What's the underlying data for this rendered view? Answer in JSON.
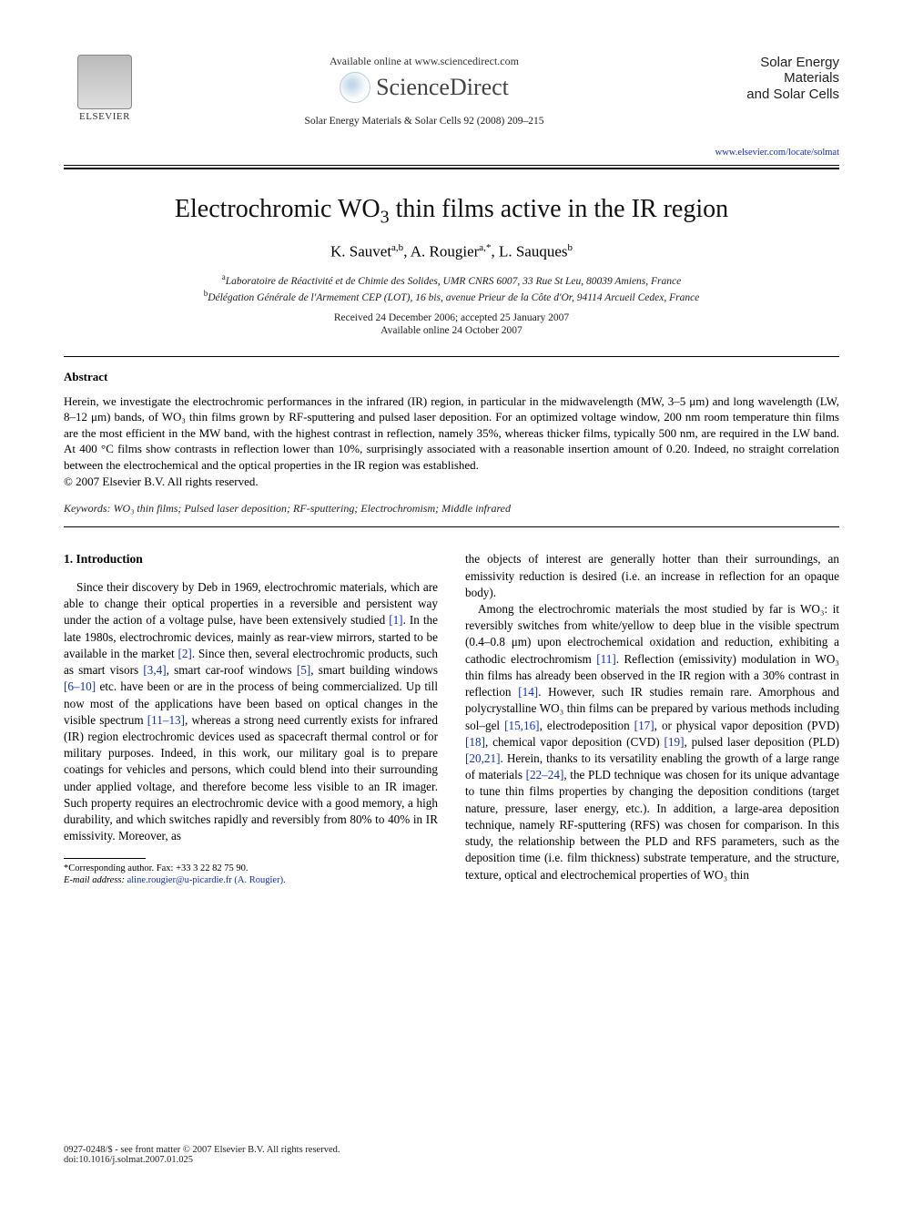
{
  "header": {
    "available_online": "Available online at www.sciencedirect.com",
    "sciencedirect": "ScienceDirect",
    "elsevier_label": "ELSEVIER",
    "journal_ref": "Solar Energy Materials & Solar Cells 92 (2008) 209–215",
    "cover_title_line1": "Solar Energy Materials",
    "cover_title_line2": "and Solar Cells",
    "journal_url": "www.elsevier.com/locate/solmat"
  },
  "article": {
    "title_pre": "Electrochromic WO",
    "title_sub": "3",
    "title_post": " thin films active in the IR region",
    "authors_html": "K. Sauvet",
    "author1_aff": "a,b",
    "author2": ", A. Rougier",
    "author2_aff": "a,",
    "author2_corr": "*",
    "author3": ", L. Sauques",
    "author3_aff": "b",
    "affil_a_sup": "a",
    "affil_a": "Laboratoire de Réactivité et de Chimie des Solides, UMR CNRS 6007, 33 Rue St Leu, 80039 Amiens, France",
    "affil_b_sup": "b",
    "affil_b": "Délégation Générale de l'Armement CEP (LOT), 16 bis, avenue Prieur de la Côte d'Or, 94114 Arcueil Cedex, France",
    "received": "Received 24 December 2006; accepted 25 January 2007",
    "available": "Available online 24 October 2007"
  },
  "abstract": {
    "heading": "Abstract",
    "body": "Herein, we investigate the electrochromic performances in the infrared (IR) region, in particular in the midwavelength (MW, 3–5 μm) and long wavelength (LW, 8–12 μm) bands, of WO₃ thin films grown by RF-sputtering and pulsed laser deposition. For an optimized voltage window, 200 nm room temperature thin films are the most efficient in the MW band, with the highest contrast in reflection, namely 35%, whereas thicker films, typically 500 nm, are required in the LW band. At 400 °C films show contrasts in reflection lower than 10%, surprisingly associated with a reasonable insertion amount of 0.20. Indeed, no straight correlation between the electrochemical and the optical properties in the IR region was established.",
    "copyright": "© 2007 Elsevier B.V. All rights reserved.",
    "keywords_label": "Keywords:",
    "keywords": " WO₃ thin films; Pulsed laser deposition; RF-sputtering; Electrochromism; Middle infrared"
  },
  "body": {
    "section_heading": "1. Introduction",
    "col1_p1a": "Since their discovery by Deb in 1969, electrochromic materials, which are able to change their optical properties in a reversible and persistent way under the action of a voltage pulse, have been extensively studied ",
    "ref1": "[1]",
    "col1_p1b": ". In the late 1980s, electrochromic devices, mainly as rear-view mirrors, started to be available in the market ",
    "ref2": "[2]",
    "col1_p1c": ". Since then, several electrochromic products, such as smart visors ",
    "ref34": "[3,4]",
    "col1_p1d": ", smart car-roof windows ",
    "ref5": "[5]",
    "col1_p1e": ", smart building windows ",
    "ref610": "[6–10]",
    "col1_p1f": " etc. have been or are in the process of being commercialized. Up till now most of the applications have been based on optical changes in the visible spectrum ",
    "ref1113": "[11–13]",
    "col1_p1g": ", whereas a strong need currently exists for infrared (IR) region electrochromic devices used as spacecraft thermal control or for military purposes. Indeed, in this work, our military goal is to prepare coatings for vehicles and persons, which could blend into their surrounding under applied voltage, and therefore become less visible to an IR imager. Such property requires an electrochromic device with a good memory, a high durability, and which switches rapidly and reversibly from 80% to 40% in IR emissivity. Moreover, as",
    "col2_p0": "the objects of interest are generally hotter than their surroundings, an emissivity reduction is desired (i.e. an increase in reflection for an opaque body).",
    "col2_p1a": "Among the electrochromic materials the most studied by far is WO₃: it reversibly switches from white/yellow to deep blue in the visible spectrum (0.4–0.8 μm) upon electrochemical oxidation and reduction, exhibiting a cathodic electrochromism ",
    "ref11": "[11]",
    "col2_p1b": ". Reflection (emissivity) modulation in WO₃ thin films has already been observed in the IR region with a 30% contrast in reflection ",
    "ref14": "[14]",
    "col2_p1c": ". However, such IR studies remain rare. Amorphous and polycrystalline WO₃ thin films can be prepared by various methods including sol–gel ",
    "ref1516": "[15,16]",
    "col2_p1d": ", electrodeposition ",
    "ref17": "[17]",
    "col2_p1e": ", or physical vapor deposition (PVD) ",
    "ref18": "[18]",
    "col2_p1f": ", chemical vapor deposition (CVD) ",
    "ref19": "[19]",
    "col2_p1g": ", pulsed laser deposition (PLD) ",
    "ref2021": "[20,21]",
    "col2_p1h": ". Herein, thanks to its versatility enabling the growth of a large range of materials ",
    "ref2224": "[22–24]",
    "col2_p1i": ", the PLD technique was chosen for its unique advantage to tune thin films properties by changing the deposition conditions (target nature, pressure, laser energy, etc.). In addition, a large-area deposition technique, namely RF-sputtering (RFS) was chosen for comparison. In this study, the relationship between the PLD and RFS parameters, such as the deposition time (i.e. film thickness) substrate temperature, and the structure, texture, optical and electrochemical properties of WO₃ thin"
  },
  "footnote": {
    "corr_label": "*Corresponding author. Fax: +33 3 22 82 75 90.",
    "email_label": "E-mail address:",
    "email": " aline.rougier@u-picardie.fr (A. Rougier)."
  },
  "footer": {
    "issn_line": "0927-0248/$ - see front matter © 2007 Elsevier B.V. All rights reserved.",
    "doi_line": "doi:10.1016/j.solmat.2007.01.025"
  },
  "style": {
    "link_color": "#1030c0",
    "text_color": "#000000",
    "page_bg": "#ffffff"
  }
}
